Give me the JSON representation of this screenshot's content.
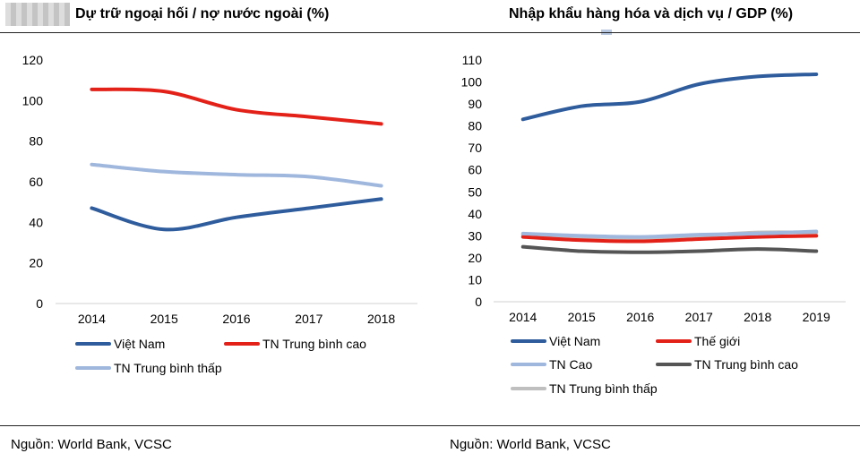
{
  "source_left": "Nguồn: World Bank, VCSC",
  "source_right": "Nguồn: World Bank, VCSC",
  "chart_data": [
    {
      "type": "line",
      "title": "Dự trữ ngoại hối / nợ nước ngoài (%)",
      "x": [
        "2014",
        "2015",
        "2016",
        "2017",
        "2018"
      ],
      "yticks": [
        "0",
        "20",
        "40",
        "60",
        "80",
        "100",
        "120"
      ],
      "ylim": [
        0,
        120
      ],
      "grid": false,
      "legend": "bottom",
      "series": [
        {
          "name": "Việt Nam",
          "color": "#2e5c9c",
          "values": [
            47,
            36.5,
            42.5,
            47,
            51.5
          ]
        },
        {
          "name": "TN Trung bình cao",
          "color": "#e32119",
          "values": [
            105.5,
            104.5,
            95.5,
            92,
            88.5
          ]
        },
        {
          "name": "TN Trung bình thấp",
          "color": "#9fb7dd",
          "values": [
            68.5,
            65,
            63.5,
            62.5,
            58
          ]
        }
      ]
    },
    {
      "type": "line",
      "title": "Nhập khẩu hàng hóa và dịch vụ / GDP (%)",
      "x": [
        "2014",
        "2015",
        "2016",
        "2017",
        "2018",
        "2019"
      ],
      "yticks": [
        "0",
        "10",
        "20",
        "30",
        "40",
        "50",
        "60",
        "70",
        "80",
        "90",
        "100",
        "110"
      ],
      "ylim": [
        0,
        110
      ],
      "grid": false,
      "legend": "bottom",
      "series": [
        {
          "name": "Việt Nam",
          "color": "#2e5c9c",
          "values": [
            83,
            89,
            91,
            99,
            102.5,
            103.5
          ]
        },
        {
          "name": "Thế giới",
          "color": "#e32119",
          "values": [
            29.5,
            28,
            27.5,
            28.5,
            29.5,
            30
          ]
        },
        {
          "name": "TN Cao",
          "color": "#9fb7dd",
          "values": [
            31,
            30,
            29.5,
            30.5,
            31,
            32
          ]
        },
        {
          "name": "TN Trung bình cao",
          "color": "#555555",
          "values": [
            25,
            23,
            22.5,
            23,
            24,
            23
          ]
        },
        {
          "name": "TN Trung bình thấp",
          "color": "#bfbfbf",
          "values": [
            30.5,
            29.5,
            29,
            30,
            31.5,
            31.5
          ]
        }
      ]
    }
  ]
}
